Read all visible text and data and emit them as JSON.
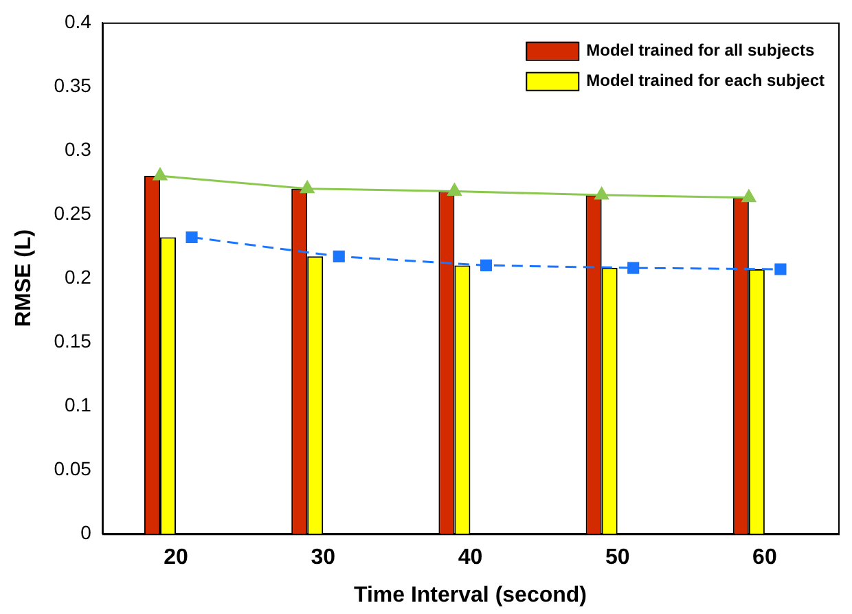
{
  "chart_data": {
    "type": "bar",
    "xlabel": "Time Interval (second)",
    "ylabel": "RMSE (L)",
    "categories": [
      "20",
      "30",
      "40",
      "50",
      "60"
    ],
    "series": [
      {
        "name": "Model trained for all subjects",
        "color": "#d42a00",
        "values": [
          0.28,
          0.27,
          0.268,
          0.265,
          0.263
        ]
      },
      {
        "name": "Model trained for each subject",
        "color": "#ffff00",
        "values": [
          0.232,
          0.217,
          0.21,
          0.208,
          0.207
        ]
      },
      {
        "type": "line",
        "color": "#8cc850",
        "marker": "triangle",
        "line_style": "solid",
        "values": [
          0.28,
          0.27,
          0.268,
          0.265,
          0.263
        ]
      },
      {
        "type": "line",
        "color": "#1a75ff",
        "marker": "square",
        "line_style": "dashed",
        "values": [
          0.232,
          0.217,
          0.21,
          0.208,
          0.207
        ]
      }
    ],
    "ylim": [
      0,
      0.4
    ],
    "yticks": [
      0,
      0.05,
      0.1,
      0.15,
      0.2,
      0.25,
      0.3,
      0.35,
      0.4
    ],
    "grid": false,
    "legend": "top right"
  }
}
